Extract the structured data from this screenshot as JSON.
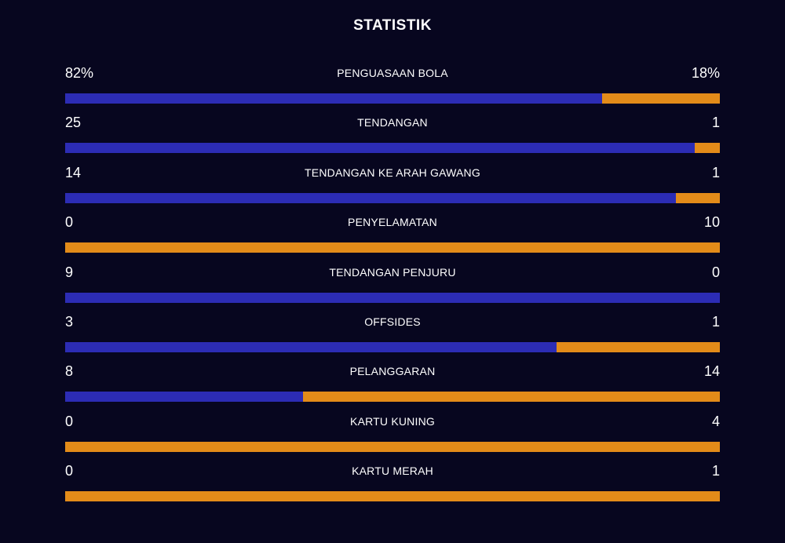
{
  "title": "STATISTIK",
  "colors": {
    "background": "#07061f",
    "home": "#2c2cb4",
    "away": "#e38b19"
  },
  "stats": [
    {
      "label": "PENGUASAAN BOLA",
      "home_display": "82%",
      "away_display": "18%",
      "home": 82,
      "away": 18
    },
    {
      "label": "TENDANGAN",
      "home_display": "25",
      "away_display": "1",
      "home": 25,
      "away": 1
    },
    {
      "label": "TENDANGAN KE ARAH GAWANG",
      "home_display": "14",
      "away_display": "1",
      "home": 14,
      "away": 1
    },
    {
      "label": "PENYELAMATAN",
      "home_display": "0",
      "away_display": "10",
      "home": 0,
      "away": 10
    },
    {
      "label": "TENDANGAN PENJURU",
      "home_display": "9",
      "away_display": "0",
      "home": 9,
      "away": 0
    },
    {
      "label": "OFFSIDES",
      "home_display": "3",
      "away_display": "1",
      "home": 3,
      "away": 1
    },
    {
      "label": "PELANGGARAN",
      "home_display": "8",
      "away_display": "14",
      "home": 8,
      "away": 14
    },
    {
      "label": "KARTU KUNING",
      "home_display": "0",
      "away_display": "4",
      "home": 0,
      "away": 4
    },
    {
      "label": "KARTU MERAH",
      "home_display": "0",
      "away_display": "1",
      "home": 0,
      "away": 1
    }
  ]
}
